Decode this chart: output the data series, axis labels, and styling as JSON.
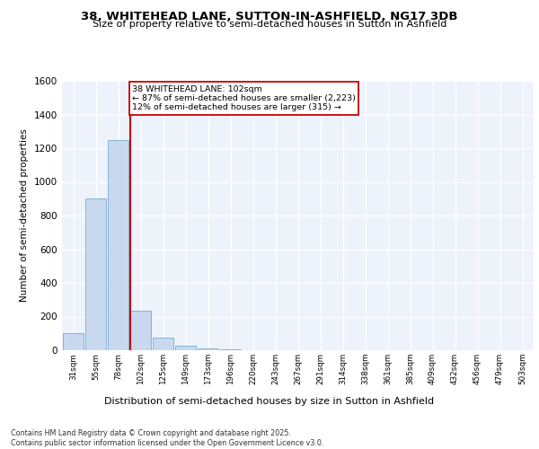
{
  "title1": "38, WHITEHEAD LANE, SUTTON-IN-ASHFIELD, NG17 3DB",
  "title2": "Size of property relative to semi-detached houses in Sutton in Ashfield",
  "xlabel": "Distribution of semi-detached houses by size in Sutton in Ashfield",
  "ylabel": "Number of semi-detached properties",
  "bin_labels": [
    "31sqm",
    "55sqm",
    "78sqm",
    "102sqm",
    "125sqm",
    "149sqm",
    "173sqm",
    "196sqm",
    "220sqm",
    "243sqm",
    "267sqm",
    "291sqm",
    "314sqm",
    "338sqm",
    "361sqm",
    "385sqm",
    "409sqm",
    "432sqm",
    "456sqm",
    "479sqm",
    "503sqm"
  ],
  "bar_values": [
    100,
    900,
    1250,
    235,
    75,
    25,
    10,
    5,
    2,
    0,
    0,
    0,
    0,
    0,
    0,
    0,
    0,
    0,
    0,
    0,
    0
  ],
  "bar_color": "#c8d9ef",
  "bar_edge_color": "#7aaad0",
  "vline_color": "#cc0000",
  "annotation_title": "38 WHITEHEAD LANE: 102sqm",
  "annotation_line1": "← 87% of semi-detached houses are smaller (2,223)",
  "annotation_line2": "12% of semi-detached houses are larger (315) →",
  "annotation_box_color": "#cc0000",
  "ylim": [
    0,
    1600
  ],
  "yticks": [
    0,
    200,
    400,
    600,
    800,
    1000,
    1200,
    1400,
    1600
  ],
  "background_color": "#edf2fb",
  "footer1": "Contains HM Land Registry data © Crown copyright and database right 2025.",
  "footer2": "Contains public sector information licensed under the Open Government Licence v3.0."
}
